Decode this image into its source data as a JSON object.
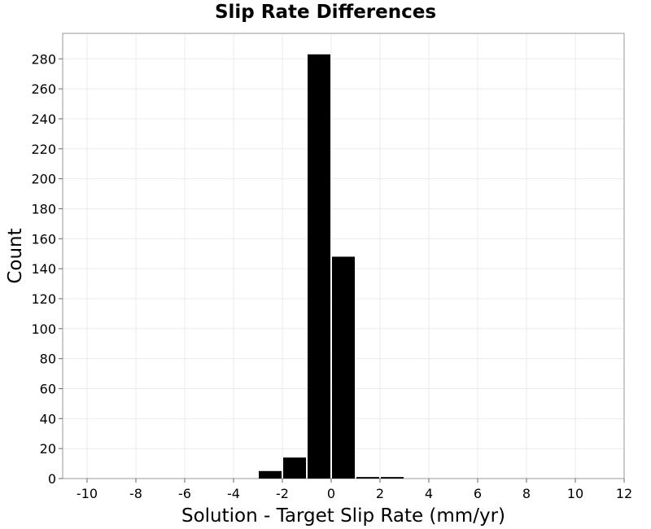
{
  "chart_data": {
    "type": "bar",
    "title": "Slip Rate Differences",
    "xlabel": "Solution - Target Slip Rate (mm/yr)",
    "ylabel": "Count",
    "xlim": [
      -11,
      12
    ],
    "ylim": [
      0,
      297
    ],
    "xticks": [
      -10,
      -8,
      -6,
      -4,
      -2,
      0,
      2,
      4,
      6,
      8,
      10,
      12
    ],
    "yticks": [
      0,
      20,
      40,
      60,
      80,
      100,
      120,
      140,
      160,
      180,
      200,
      220,
      240,
      260,
      280
    ],
    "grid": true,
    "bar_color": "#000000",
    "bins": [
      {
        "x0": -3,
        "x1": -2,
        "count": 5
      },
      {
        "x0": -2,
        "x1": -1,
        "count": 14
      },
      {
        "x0": -1,
        "x1": 0,
        "count": 283
      },
      {
        "x0": 0,
        "x1": 1,
        "count": 148
      },
      {
        "x0": 1,
        "x1": 2,
        "count": 1
      },
      {
        "x0": 2,
        "x1": 3,
        "count": 1
      }
    ]
  }
}
